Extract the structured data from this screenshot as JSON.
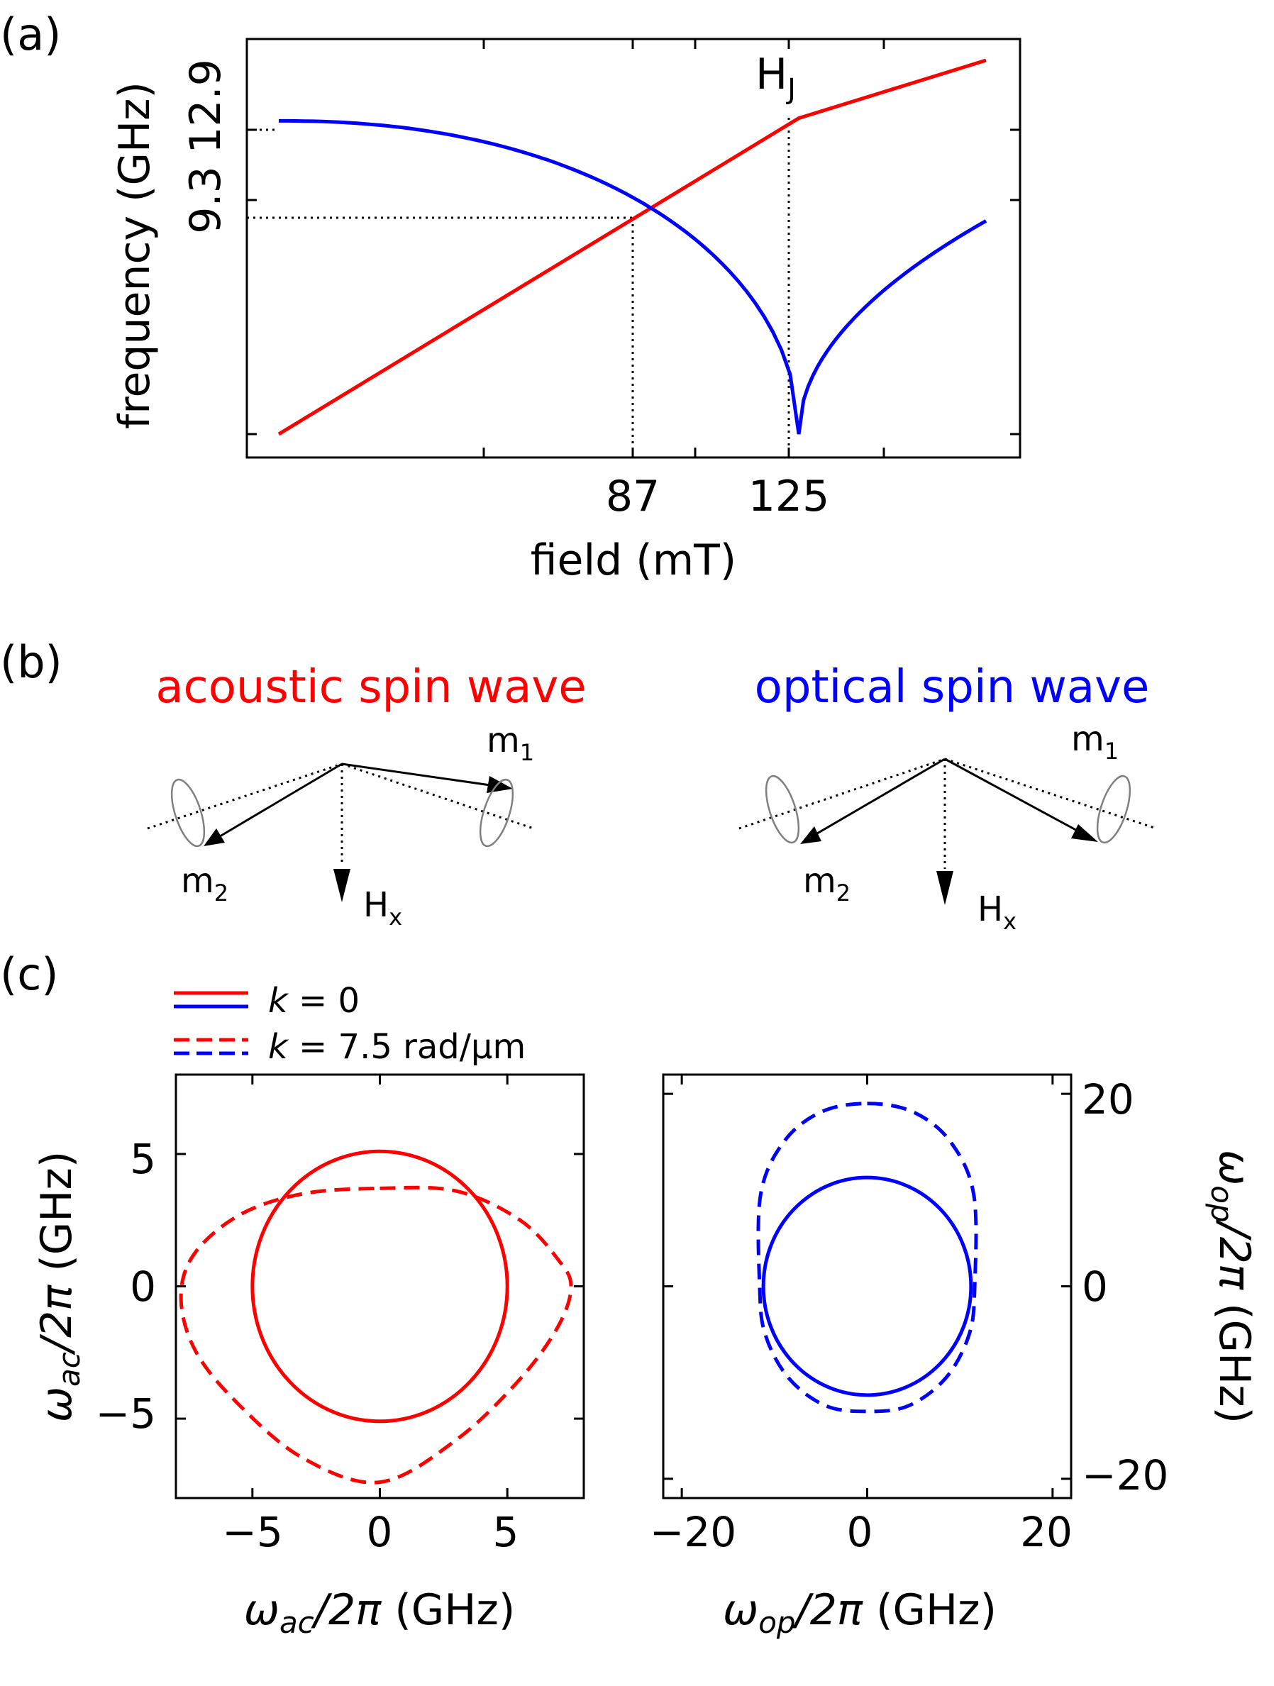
{
  "panels": {
    "a": "(a)",
    "b": "(b)",
    "c": "(c)"
  },
  "colors": {
    "acoustic": "#ff0000",
    "optical": "#0000ff",
    "axis": "#000000",
    "ellipse": "#808080"
  },
  "chart_data": [
    {
      "id": "a",
      "type": "line",
      "xlabel": "field (mT)",
      "ylabel": "frequency (GHz)",
      "x_ticks": [
        87,
        125
      ],
      "y_ticks": [
        9.3,
        12.9
      ],
      "annotation": {
        "text": "H",
        "subscript": "J"
      },
      "series": [
        {
          "color": "red",
          "x": [
            0,
            125,
            170
          ],
          "y": [
            0,
            12.0,
            14.2
          ]
        },
        {
          "color": "blue",
          "description": "optical mode, drops to zero at 125 mT",
          "x": [
            0,
            20,
            40,
            60,
            80,
            87,
            100,
            110,
            118,
            122,
            125,
            127,
            130,
            140,
            150,
            160,
            170
          ],
          "y": [
            11.9,
            11.75,
            11.1,
            10.1,
            8.3,
            8.4,
            6.7,
            5.0,
            3.2,
            1.9,
            0,
            1.7,
            2.8,
            4.8,
            6.2,
            7.3,
            8.1
          ]
        }
      ],
      "intersection": {
        "x": 87,
        "y": 8.4
      },
      "dotted_guides": true
    },
    {
      "id": "c-left",
      "type": "line",
      "xlabel": "ω_ac/2π (GHz)",
      "ylabel": "ω_ac/2π (GHz)",
      "x_ticks": [
        -5,
        0,
        5
      ],
      "y_ticks": [
        -5,
        0,
        5
      ],
      "xlim": [
        -8,
        8
      ],
      "ylim": [
        -8,
        8
      ],
      "series": [
        {
          "name": "k = 0",
          "color": "red",
          "dash": "solid",
          "shape": "ellipse",
          "rx": 5.0,
          "ry_top": 5.1,
          "ry_bottom": 5.1
        },
        {
          "name": "k = 7.5 rad/μm",
          "color": "red",
          "dash": "dashed",
          "shape": "distorted-loop",
          "points": [
            [
              0,
              3.7
            ],
            [
              3,
              3.6
            ],
            [
              5.5,
              2.5
            ],
            [
              7,
              1
            ],
            [
              7.5,
              0
            ],
            [
              7,
              -1.5
            ],
            [
              5.5,
              -3.5
            ],
            [
              3,
              -5.8
            ],
            [
              0,
              -7.4
            ],
            [
              -3,
              -6.5
            ],
            [
              -5.5,
              -4.5
            ],
            [
              -7.2,
              -2.5
            ],
            [
              -7.8,
              -0.5
            ],
            [
              -7.3,
              1.2
            ],
            [
              -5.5,
              2.7
            ],
            [
              -3,
              3.5
            ],
            [
              0,
              3.7
            ]
          ]
        }
      ]
    },
    {
      "id": "c-right",
      "type": "line",
      "xlabel": "ω_op/2π (GHz)",
      "ylabel": "ω_op/2π (GHz)",
      "x_ticks": [
        -20,
        0,
        20
      ],
      "y_ticks": [
        -20,
        0,
        20
      ],
      "xlim": [
        -22,
        22
      ],
      "ylim": [
        -22,
        22
      ],
      "series": [
        {
          "name": "k = 0",
          "color": "blue",
          "dash": "solid",
          "shape": "ellipse",
          "rx": 11.2,
          "ry": 11.3
        },
        {
          "name": "k = 7.5 rad/μm",
          "color": "blue",
          "dash": "dashed",
          "shape": "distorted-loop",
          "points": [
            [
              0,
              19.0
            ],
            [
              5,
              18.1
            ],
            [
              9,
              15.0
            ],
            [
              11.5,
              9.5
            ],
            [
              11.6,
              0
            ],
            [
              11,
              -5
            ],
            [
              8.5,
              -9.5
            ],
            [
              4.5,
              -12.4
            ],
            [
              0,
              -13.0
            ],
            [
              -4.5,
              -12.4
            ],
            [
              -8.5,
              -9.5
            ],
            [
              -11,
              -5
            ],
            [
              -11.6,
              0
            ],
            [
              -11.5,
              9.5
            ],
            [
              -9,
              15.0
            ],
            [
              -5,
              18.1
            ],
            [
              0,
              19.0
            ]
          ]
        }
      ]
    }
  ],
  "legend": [
    {
      "k": "k",
      "text": " = 0",
      "style": "solid"
    },
    {
      "k": "k",
      "text": " = 7.5 rad/μm",
      "style": "dashed"
    }
  ],
  "diagram_b": {
    "acoustic_title": "acoustic spin wave",
    "optical_title": "optical spin wave",
    "m1": {
      "base": "m",
      "sub": "1"
    },
    "m2": {
      "base": "m",
      "sub": "2"
    },
    "hx": {
      "base": "H",
      "sub": "x"
    }
  }
}
